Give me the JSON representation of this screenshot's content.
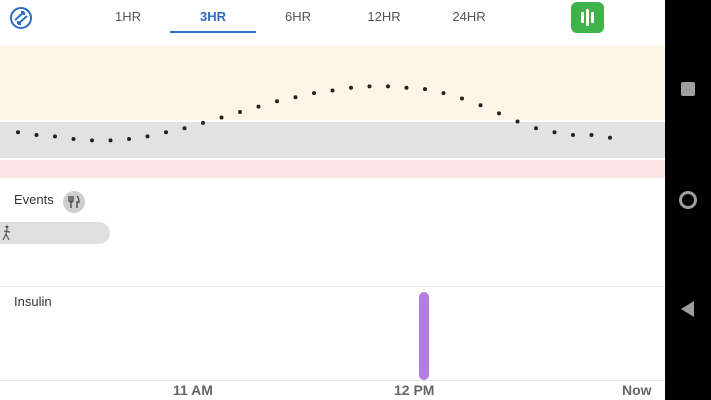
{
  "tabs": [
    {
      "label": "1HR",
      "active": false
    },
    {
      "label": "3HR",
      "active": true
    },
    {
      "label": "6HR",
      "active": false
    },
    {
      "label": "12HR",
      "active": false
    },
    {
      "label": "24HR",
      "active": false
    }
  ],
  "colors": {
    "accent": "#2e6bc6",
    "chart_button": "#3db34a",
    "high_band": "#fdf5e6",
    "target_band": "#e2e2e2",
    "low_band": "#fce4e6",
    "insulin": "#b57be2"
  },
  "icons": {
    "sync": "sync-icon",
    "chart": "bar-chart-icon",
    "meal": "fork-knife-icon",
    "activity": "activity-icon"
  },
  "events": {
    "label": "Events"
  },
  "insulin": {
    "label": "Insulin"
  },
  "time_axis": [
    "11 AM",
    "12 PM",
    "Now"
  ],
  "chart_data": {
    "type": "scatter",
    "title": "",
    "xlabel": "",
    "ylabel": "",
    "x_ticks": [
      "11 AM",
      "12 PM",
      "Now"
    ],
    "series": [
      {
        "values": [
          0.22,
          0.2,
          0.19,
          0.17,
          0.16,
          0.16,
          0.17,
          0.19,
          0.22,
          0.25,
          0.29,
          0.33,
          0.37,
          0.41,
          0.45,
          0.48,
          0.51,
          0.53,
          0.55,
          0.56,
          0.56,
          0.55,
          0.54,
          0.51,
          0.47,
          0.42,
          0.36,
          0.3,
          0.25,
          0.22,
          0.2,
          0.2,
          0.18
        ]
      }
    ]
  }
}
